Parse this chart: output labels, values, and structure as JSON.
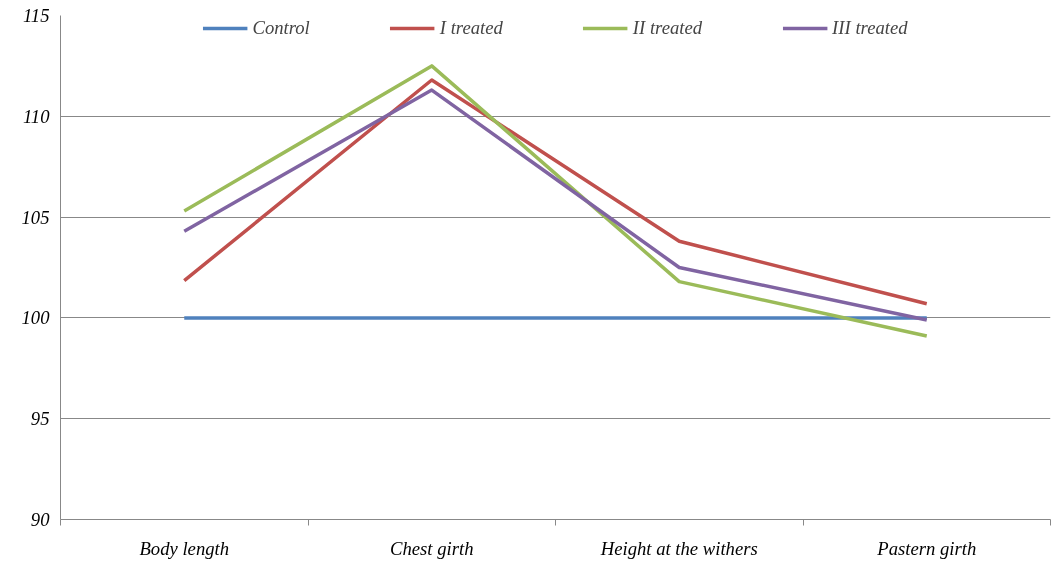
{
  "chart_data": {
    "type": "line",
    "categories": [
      "Body length",
      "Chest girth",
      "Height at the withers",
      "Pastern girth"
    ],
    "series": [
      {
        "name": "Control",
        "color": "#4f81bd",
        "values": [
          100,
          100,
          100,
          100
        ]
      },
      {
        "name": "I treated",
        "color": "#c0504d",
        "values": [
          101.85,
          111.8,
          103.8,
          100.7
        ]
      },
      {
        "name": "II treated",
        "color": "#9bbb59",
        "values": [
          105.3,
          112.5,
          101.8,
          99.1
        ]
      },
      {
        "name": "III treated",
        "color": "#8064a2",
        "values": [
          104.3,
          111.3,
          102.5,
          99.9
        ]
      }
    ],
    "ylim": [
      90,
      115
    ],
    "yticks": [
      90,
      95,
      100,
      105,
      110,
      115
    ],
    "grid": "y",
    "legend": "top",
    "marker": "none",
    "line_style": "solid"
  }
}
